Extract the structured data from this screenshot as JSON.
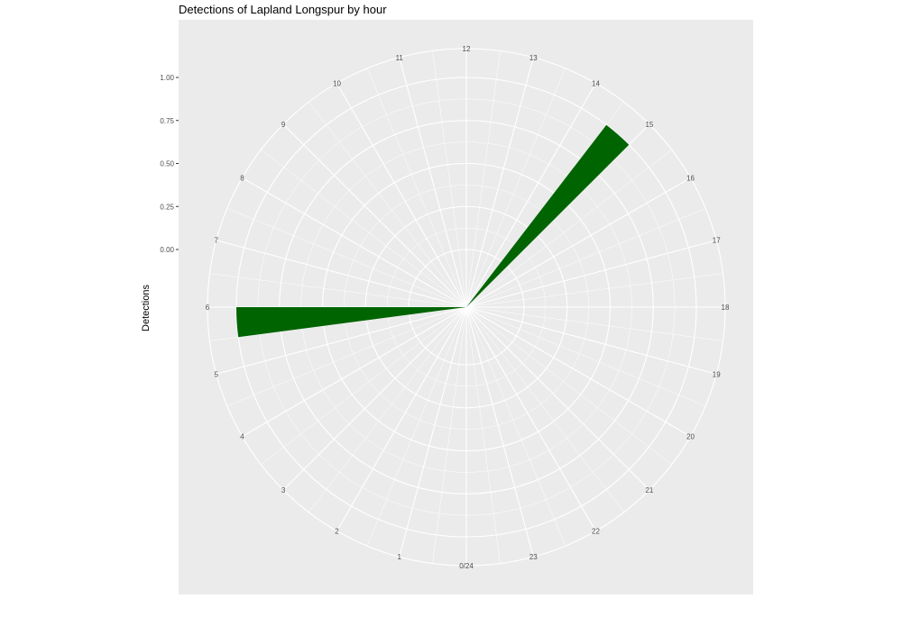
{
  "chart_data": {
    "type": "bar",
    "polar": true,
    "title": "Detections of Lapland Longspur by hour",
    "ylabel": "Detections",
    "xlabel": "",
    "x_ticks": [
      "0/24",
      "1",
      "2",
      "3",
      "4",
      "5",
      "6",
      "7",
      "8",
      "9",
      "10",
      "11",
      "12",
      "13",
      "14",
      "15",
      "16",
      "17",
      "18",
      "19",
      "20",
      "21",
      "22",
      "23"
    ],
    "y_ticks": [
      "0.00",
      "0.25",
      "0.50",
      "0.75",
      "1.00"
    ],
    "ylim": [
      0,
      1
    ],
    "categories": [
      "0",
      "1",
      "2",
      "3",
      "4",
      "5",
      "6",
      "7",
      "8",
      "9",
      "10",
      "11",
      "12",
      "13",
      "14",
      "15",
      "16",
      "17",
      "18",
      "19",
      "20",
      "21",
      "22",
      "23"
    ],
    "values": [
      0,
      0,
      0,
      0,
      0,
      0,
      1,
      0,
      0,
      0,
      0,
      0,
      0,
      0,
      0,
      1,
      0,
      0,
      0,
      0,
      0,
      0,
      0,
      0
    ],
    "bar_color": "#006400",
    "panel_color": "#ebebeb",
    "grid_color": "#ffffff"
  }
}
